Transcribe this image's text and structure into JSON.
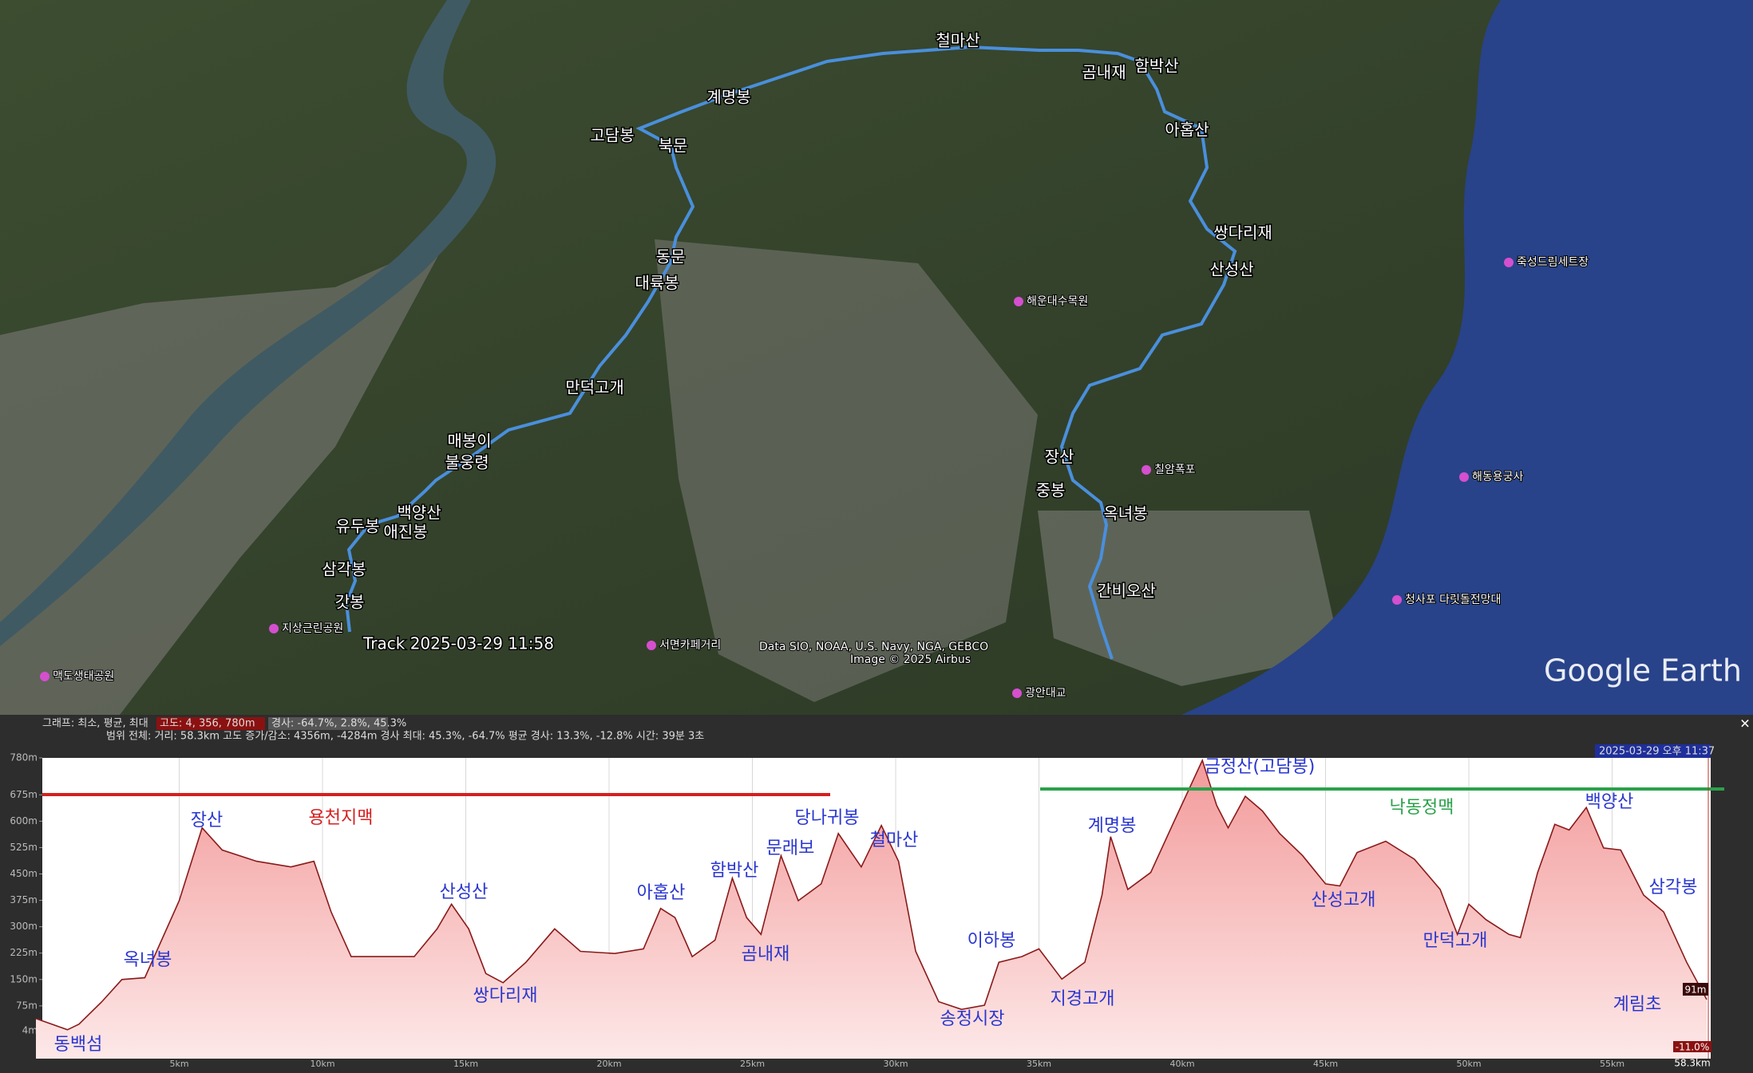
{
  "map": {
    "labels": [
      "고담봉",
      "북문",
      "계명봉",
      "철마산",
      "곰내재",
      "함박산",
      "아홉산",
      "쌍다리재",
      "산성산",
      "장산",
      "중봉",
      "옥녀봉",
      "간비오산",
      "동문",
      "대륙봉",
      "만덕고개",
      "매봉이",
      "불웅령",
      "백양산",
      "애진봉",
      "유두봉",
      "삼각봉",
      "갓봉"
    ],
    "places": [
      "광안대교",
      "청사포 다릿돌전망대",
      "해동용궁사",
      "죽성드림세트장",
      "맥도생태공원",
      "지상근린공원",
      "서면카페거리",
      "해운대수목원",
      "칠암폭포"
    ],
    "track": "Track 2025-03-29 11:58",
    "attribution": "Data SIO, NOAA, U.S. Navy, NGA, GEBCO",
    "image_credit": "Image © 2025 Airbus",
    "logo": "Google Earth"
  },
  "profile_header": {
    "graph": "그래프: 최소, 평균, 최대",
    "elevation": "고도: 4, 356, 780m",
    "slope": "경사: -64.7%, 2.8%, 45.3%",
    "summary": "범위 전체: 거리: 58.3km 고도 증가/감소: 4356m, -4284m 경사 최대: 45.3%, -64.7% 평균 경사: 13.3%, -12.8% 시간: 39분 3초",
    "date": "2025-03-29 오후 11:37",
    "close": "✕",
    "cursor_elevation": "91m",
    "cursor_slope": "-11.0%",
    "cursor_distance": "58.3km"
  },
  "chart_data": {
    "type": "area",
    "color": "#8b1a1a",
    "fill": "#f6c2c2",
    "grid": true,
    "x": [
      0,
      1.1,
      1.5,
      2.3,
      3.0,
      3.8,
      5.0,
      5.8,
      6.5,
      7.7,
      8.9,
      9.7,
      10.3,
      11.0,
      12.0,
      13.2,
      14.0,
      14.5,
      15.1,
      15.7,
      16.3,
      17.1,
      18.1,
      19.0,
      20.2,
      21.2,
      21.8,
      22.3,
      22.9,
      23.7,
      24.3,
      24.8,
      25.3,
      26.0,
      26.6,
      27.4,
      28.0,
      28.8,
      29.5,
      30.1,
      30.7,
      31.5,
      32.3,
      33.1,
      33.6,
      34.4,
      35.0,
      35.8,
      36.6,
      37.2,
      37.5,
      38.1,
      38.9,
      39.7,
      40.7,
      41.2,
      41.6,
      42.2,
      42.8,
      43.4,
      44.2,
      45.0,
      45.5,
      46.1,
      47.1,
      48.1,
      49.0,
      49.6,
      50.0,
      50.6,
      51.4,
      51.8,
      52.4,
      53.0,
      53.5,
      54.1,
      54.7,
      55.3,
      56.1,
      56.8,
      57.6,
      58.3
    ],
    "values": [
      39,
      7,
      23,
      87,
      150,
      155,
      374,
      581,
      518,
      486,
      470,
      486,
      342,
      215,
      215,
      215,
      294,
      364,
      294,
      167,
      141,
      199,
      294,
      230,
      224,
      237,
      352,
      326,
      215,
      262,
      438,
      326,
      278,
      502,
      374,
      422,
      565,
      470,
      588,
      486,
      230,
      87,
      65,
      77,
      199,
      215,
      237,
      151,
      199,
      390,
      556,
      406,
      454,
      597,
      773,
      645,
      581,
      671,
      629,
      565,
      502,
      422,
      416,
      511,
      543,
      492,
      406,
      278,
      364,
      320,
      278,
      269,
      454,
      591,
      575,
      639,
      524,
      518,
      390,
      342,
      199,
      93
    ],
    "xlim": [
      0,
      58.3
    ],
    "ylim": [
      -75,
      780
    ],
    "xticks": [
      {
        "value": 5,
        "label": "5km"
      },
      {
        "value": 10,
        "label": "10km"
      },
      {
        "value": 15,
        "label": "15km"
      },
      {
        "value": 20,
        "label": "20km"
      },
      {
        "value": 25,
        "label": "25km"
      },
      {
        "value": 30,
        "label": "30km"
      },
      {
        "value": 35,
        "label": "35km"
      },
      {
        "value": 40,
        "label": "40km"
      },
      {
        "value": 45,
        "label": "45km"
      },
      {
        "value": 50,
        "label": "50km"
      },
      {
        "value": 55,
        "label": "55km"
      }
    ],
    "yticks": [
      {
        "value": 780,
        "label": "780m"
      },
      {
        "value": 675,
        "label": "675m"
      },
      {
        "value": 600,
        "label": "600m"
      },
      {
        "value": 525,
        "label": "525m"
      },
      {
        "value": 450,
        "label": "450m"
      },
      {
        "value": 375,
        "label": "375m"
      },
      {
        "value": 300,
        "label": "300m"
      },
      {
        "value": 225,
        "label": "225m"
      },
      {
        "value": 150,
        "label": "150m"
      },
      {
        "value": 75,
        "label": "75m"
      },
      {
        "value": 4,
        "label": "4m"
      }
    ],
    "annotations": [
      "동백섬",
      "옥녀봉",
      "장산",
      "용천지맥",
      "산성산",
      "쌍다리재",
      "아홉산",
      "함박산",
      "곰내재",
      "문래보",
      "당나귀봉",
      "철마산",
      "송정시장",
      "이하봉",
      "지경고개",
      "계명봉",
      "금정산(고담봉)",
      "낙동정맥",
      "산성고개",
      "만덕고개",
      "백양산",
      "삼각봉",
      "계림초"
    ]
  }
}
